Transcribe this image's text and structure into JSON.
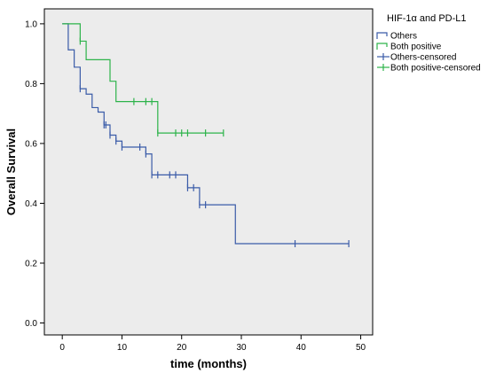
{
  "chart_data": {
    "type": "line",
    "subtype": "kaplan-meier",
    "xlabel": "time (months)",
    "ylabel": "Overall Survival",
    "xlim": [
      -3,
      52
    ],
    "ylim": [
      -0.04,
      1.05
    ],
    "x_ticks": [
      0,
      10,
      20,
      30,
      40,
      50
    ],
    "y_ticks": [
      0.0,
      0.2,
      0.4,
      0.6,
      0.8,
      1.0
    ],
    "x_tick_labels": [
      "0",
      "10",
      "20",
      "30",
      "40",
      "50"
    ],
    "y_tick_labels": [
      "0.0",
      "0.2",
      "0.4",
      "0.6",
      "0.8",
      "1.0"
    ],
    "grid": false,
    "plot_background": "#ececec",
    "legend": {
      "title": "HIF-1α and PD-L1",
      "placement": "right-outside-top",
      "entries": [
        {
          "label": "Others",
          "kind": "step",
          "color": "#3a5ba8"
        },
        {
          "label": "Both positive",
          "kind": "step",
          "color": "#2db34a"
        },
        {
          "label": "Others-censored",
          "kind": "censor",
          "color": "#3a5ba8"
        },
        {
          "label": "Both positive-censored",
          "kind": "censor",
          "color": "#2db34a"
        }
      ]
    },
    "series": [
      {
        "name": "Others",
        "color": "#3a5ba8",
        "steps": [
          [
            0,
            1.0
          ],
          [
            1,
            0.913
          ],
          [
            2,
            0.855
          ],
          [
            3,
            0.783
          ],
          [
            4,
            0.765
          ],
          [
            5,
            0.72
          ],
          [
            6,
            0.705
          ],
          [
            7,
            0.662
          ],
          [
            8,
            0.628
          ],
          [
            9,
            0.608
          ],
          [
            10,
            0.588
          ],
          [
            14,
            0.565
          ],
          [
            15,
            0.495
          ],
          [
            21,
            0.452
          ],
          [
            23,
            0.395
          ],
          [
            29,
            0.265
          ]
        ],
        "end_x": 48,
        "censored": [
          [
            3,
            0.783
          ],
          [
            7,
            0.662
          ],
          [
            7.3,
            0.662
          ],
          [
            8,
            0.628
          ],
          [
            9,
            0.608
          ],
          [
            10,
            0.588
          ],
          [
            13,
            0.588
          ],
          [
            14,
            0.565
          ],
          [
            15,
            0.495
          ],
          [
            16,
            0.495
          ],
          [
            18,
            0.495
          ],
          [
            19,
            0.495
          ],
          [
            21,
            0.452
          ],
          [
            22,
            0.452
          ],
          [
            23,
            0.395
          ],
          [
            24,
            0.395
          ],
          [
            39,
            0.265
          ],
          [
            48,
            0.265
          ]
        ]
      },
      {
        "name": "Both positive",
        "color": "#2db34a",
        "steps": [
          [
            0,
            1.0
          ],
          [
            3,
            0.942
          ],
          [
            4,
            0.88
          ],
          [
            8,
            0.808
          ],
          [
            9,
            0.74
          ],
          [
            16,
            0.635
          ]
        ],
        "end_x": 27,
        "censored": [
          [
            3,
            0.942
          ],
          [
            12,
            0.74
          ],
          [
            14,
            0.74
          ],
          [
            15,
            0.74
          ],
          [
            16,
            0.635
          ],
          [
            19,
            0.635
          ],
          [
            20,
            0.635
          ],
          [
            21,
            0.635
          ],
          [
            24,
            0.635
          ],
          [
            27,
            0.635
          ]
        ]
      }
    ]
  }
}
